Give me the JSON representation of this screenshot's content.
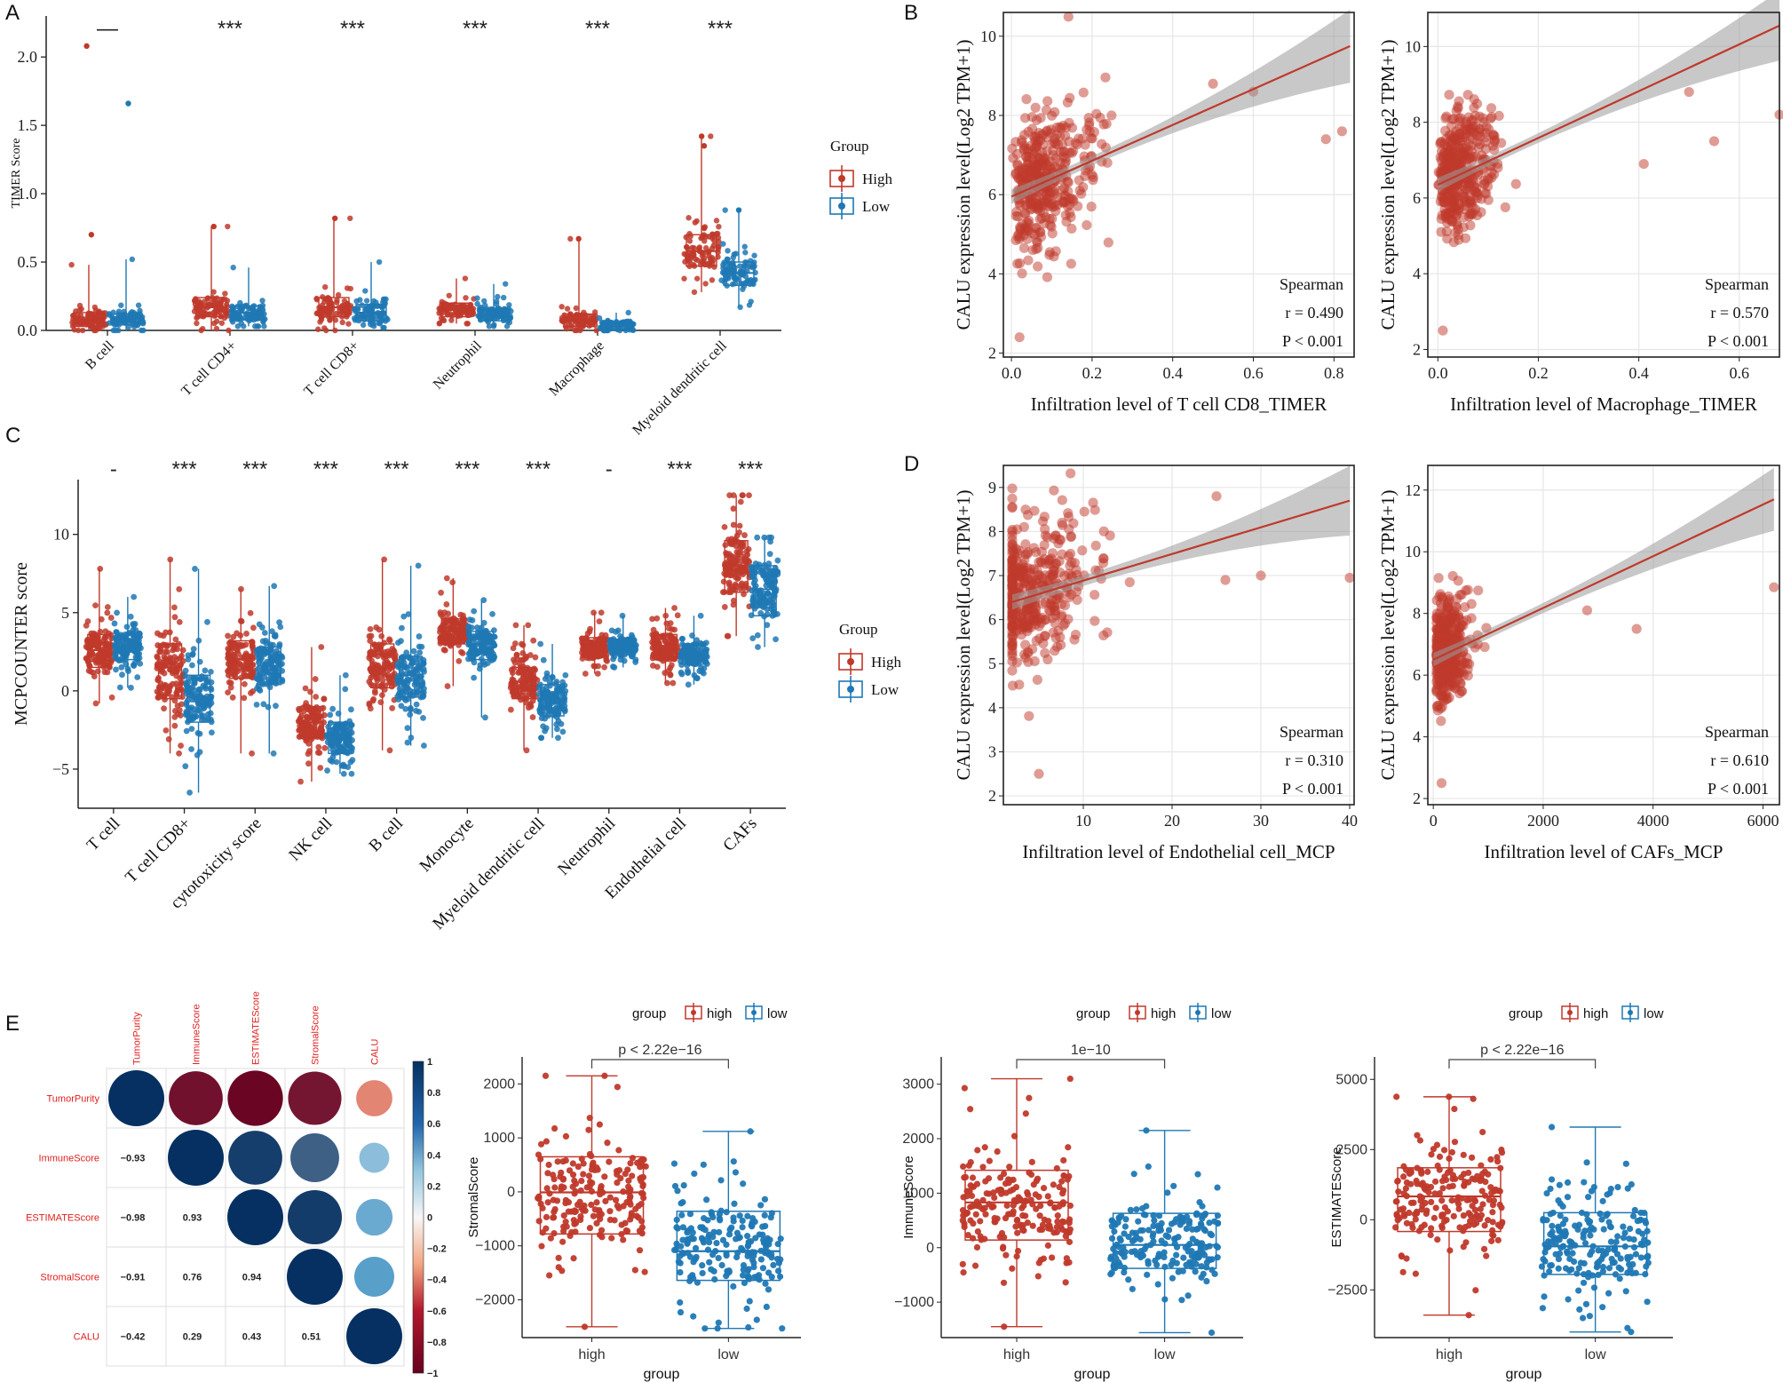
{
  "colors": {
    "high": "#c0392b",
    "low": "#1f78b4",
    "line": "#c0392b",
    "band": "#9a9a9a",
    "grid": "#e6e6e6",
    "axis": "#222222",
    "corrLabel": "#e02020"
  },
  "legend": {
    "title_a": "Group",
    "title_c": "Group",
    "high": "High",
    "low": "Low",
    "title_e": "group",
    "high_e": "high",
    "low_e": "low"
  },
  "panels": {
    "a": "A",
    "b": "B",
    "c": "C",
    "d": "D",
    "e": "E"
  },
  "chart_data": [
    {
      "id": "A",
      "type": "box+strip",
      "ylabel": "TIMER Score",
      "ylim": [
        0,
        2.3
      ],
      "yticks": [
        "0.0",
        "0.5",
        "1.0",
        "1.5",
        "2.0"
      ],
      "categories": [
        "B cell",
        "T cell CD4+",
        "T cell CD8+",
        "Neutrophil",
        "Macrophage",
        "Myeloid dendritic cell"
      ],
      "significance": [
        "—",
        "***",
        "***",
        "***",
        "***",
        "***"
      ],
      "series": [
        {
          "name": "High",
          "median": [
            0.07,
            0.17,
            0.17,
            0.15,
            0.07,
            0.58
          ],
          "q1": [
            0.03,
            0.1,
            0.1,
            0.1,
            0.03,
            0.47
          ],
          "q3": [
            0.13,
            0.24,
            0.24,
            0.2,
            0.12,
            0.7
          ],
          "min": [
            0,
            0,
            0,
            0.05,
            0,
            0.28
          ],
          "max": [
            0.48,
            0.76,
            0.82,
            0.38,
            0.67,
            1.42
          ],
          "outliers": [
            [
              2.08,
              0.7
            ],
            [
              0.76
            ],
            [
              0.82
            ],
            [],
            [
              0.67
            ],
            [
              1.42,
              1.35
            ]
          ]
        },
        {
          "name": "Low",
          "median": [
            0.08,
            0.13,
            0.13,
            0.12,
            0.03,
            0.42
          ],
          "q1": [
            0.04,
            0.08,
            0.07,
            0.07,
            0.01,
            0.33
          ],
          "q3": [
            0.12,
            0.18,
            0.19,
            0.16,
            0.06,
            0.5
          ],
          "min": [
            0,
            0.03,
            0.02,
            0.03,
            0,
            0.17
          ],
          "max": [
            0.52,
            0.46,
            0.5,
            0.34,
            0.13,
            0.88
          ],
          "outliers": [
            [
              1.66
            ],
            [],
            [],
            [],
            [],
            [
              0.88
            ]
          ]
        }
      ]
    },
    {
      "id": "B1",
      "type": "scatter",
      "xlabel": "Infiltration level of T cell CD8_TIMER",
      "ylabel": "CALU expression level(Log2 TPM+1)",
      "xlim": [
        -0.02,
        0.85
      ],
      "ylim": [
        1.9,
        10.6
      ],
      "xticks": [
        "0.0",
        "0.2",
        "0.4",
        "0.6",
        "0.8"
      ],
      "yticks": [
        "2",
        "4",
        "6",
        "8",
        "10"
      ],
      "stat": {
        "method": "Spearman",
        "r": "r = 0.490",
        "p": "P < 0.001"
      },
      "fit": {
        "x0": 0.0,
        "y0": 5.95,
        "x1": 0.84,
        "y1": 9.75
      }
    },
    {
      "id": "B2",
      "type": "scatter",
      "xlabel": "Infiltration level of Macrophage_TIMER",
      "ylabel": "CALU expression level(Log2 TPM+1)",
      "xlim": [
        -0.02,
        0.68
      ],
      "ylim": [
        1.8,
        10.9
      ],
      "xticks": [
        "0.0",
        "0.2",
        "0.4",
        "0.6"
      ],
      "yticks": [
        "2",
        "4",
        "6",
        "8",
        "10"
      ],
      "stat": {
        "method": "Spearman",
        "r": "r = 0.570",
        "p": "P < 0.001"
      },
      "fit": {
        "x0": 0.0,
        "y0": 6.35,
        "x1": 0.68,
        "y1": 10.55
      }
    },
    {
      "id": "C",
      "type": "box+strip",
      "ylabel": "MCPCOUNTER score",
      "ylim": [
        -7.5,
        13.5
      ],
      "yticks": [
        "−5",
        "0",
        "5",
        "10"
      ],
      "categories": [
        "T cell",
        "T cell CD8+",
        "cytotoxicity score",
        "NK cell",
        "B cell",
        "Monocyte",
        "Myeloid dendritic cell",
        "Neutrophil",
        "Endothelial cell",
        "CAFs"
      ],
      "significance": [
        "-",
        "***",
        "***",
        "***",
        "***",
        "***",
        "***",
        "-",
        "***",
        "***"
      ],
      "series": [
        {
          "name": "High",
          "median": [
            2.6,
            1.5,
            2.0,
            -2.0,
            1.5,
            3.8,
            0.6,
            2.8,
            2.8,
            8.0
          ],
          "q1": [
            1.5,
            -0.5,
            0.8,
            -3.0,
            0.2,
            3.0,
            -0.5,
            2.2,
            2.0,
            6.3
          ],
          "q3": [
            3.6,
            3.0,
            3.2,
            -1.0,
            3.0,
            4.6,
            1.5,
            3.4,
            3.6,
            9.6
          ],
          "min": [
            -0.8,
            -4.0,
            -4.0,
            -5.8,
            -3.8,
            0.3,
            -3.8,
            1.1,
            0.5,
            3.5
          ],
          "max": [
            7.8,
            8.4,
            6.5,
            2.8,
            8.4,
            7.2,
            4.2,
            5.0,
            5.3,
            12.5
          ]
        },
        {
          "name": "Low",
          "median": [
            2.8,
            -0.4,
            1.6,
            -3.0,
            1.0,
            3.0,
            -0.6,
            2.8,
            2.3,
            6.5
          ],
          "q1": [
            2.0,
            -2.0,
            0.4,
            -4.0,
            -0.4,
            2.0,
            -1.6,
            2.3,
            1.7,
            4.8
          ],
          "q3": [
            3.6,
            1.0,
            2.8,
            -2.0,
            2.2,
            3.8,
            0.4,
            3.3,
            3.0,
            8.0
          ],
          "min": [
            0.2,
            -6.5,
            -4.0,
            -5.3,
            -3.5,
            -1.7,
            -3.0,
            1.5,
            0.4,
            2.8
          ],
          "max": [
            6.0,
            7.8,
            6.7,
            1.0,
            8.0,
            5.8,
            3.0,
            4.8,
            4.8,
            9.8
          ]
        }
      ]
    },
    {
      "id": "D1",
      "type": "scatter",
      "xlabel": "Infiltration level of Endothelial cell_MCP",
      "ylabel": "CALU expression level(Log2 TPM+1)",
      "xlim": [
        1,
        40.5
      ],
      "ylim": [
        1.8,
        9.5
      ],
      "xticks": [
        "10",
        "20",
        "30",
        "40"
      ],
      "yticks": [
        "2",
        "3",
        "4",
        "5",
        "6",
        "7",
        "8",
        "9"
      ],
      "stat": {
        "method": "Spearman",
        "r": "r = 0.310",
        "p": "P < 0.001"
      },
      "fit": {
        "x0": 2,
        "y0": 6.4,
        "x1": 40,
        "y1": 8.7
      }
    },
    {
      "id": "D2",
      "type": "scatter",
      "xlabel": "Infiltration level of CAFs_MCP",
      "ylabel": "CALU expression level(Log2 TPM+1)",
      "xlim": [
        -100,
        6300
      ],
      "ylim": [
        1.8,
        12.8
      ],
      "xticks": [
        "0",
        "2000",
        "4000",
        "6000"
      ],
      "yticks": [
        "2",
        "4",
        "6",
        "8",
        "10",
        "12"
      ],
      "stat": {
        "method": "Spearman",
        "r": "r = 0.610",
        "p": "P < 0.001"
      },
      "fit": {
        "x0": 0,
        "y0": 6.5,
        "x1": 6200,
        "y1": 11.7
      }
    },
    {
      "id": "E1",
      "type": "corrplot",
      "variables": [
        "TumorPurity",
        "ImmuneScore",
        "ESTIMATEScore",
        "StromalScore",
        "CALU"
      ],
      "matrix": [
        [
          1,
          -0.93,
          -0.98,
          -0.91,
          -0.42
        ],
        [
          -0.93,
          1,
          0.93,
          0.76,
          0.29
        ],
        [
          -0.98,
          0.93,
          1,
          0.94,
          0.43
        ],
        [
          -0.91,
          0.76,
          0.94,
          1,
          0.51
        ],
        [
          -0.42,
          0.29,
          0.43,
          0.51,
          1
        ]
      ],
      "lower_labels": [
        [
          "−0.93"
        ],
        [
          "−0.98",
          "0.93"
        ],
        [
          "−0.91",
          "0.76",
          "0.94"
        ],
        [
          "−0.42",
          "0.29",
          "0.43",
          "0.51"
        ]
      ],
      "colorbar": [
        "1",
        "0.8",
        "0.6",
        "0.4",
        "0.2",
        "0",
        "−0.2",
        "−0.4",
        "−0.6",
        "−0.8",
        "−1"
      ]
    },
    {
      "id": "E2",
      "type": "box+strip",
      "xlabel": "group",
      "ylabel": "StromalScore",
      "categories": [
        "high",
        "low"
      ],
      "pvalue": "p < 2.22e−16",
      "ylim": [
        -2700,
        2500
      ],
      "yticks": [
        "2000",
        "1000",
        "0",
        "−1000",
        "−2000"
      ],
      "ytickVals": [
        2000,
        1000,
        0,
        -1000,
        -2000
      ],
      "series": [
        {
          "name": "high",
          "median": -10,
          "q1": -780,
          "q3": 650,
          "min": -2500,
          "max": 2150
        },
        {
          "name": "low",
          "median": -1100,
          "q1": -1640,
          "q3": -360,
          "min": -2530,
          "max": 1120
        }
      ]
    },
    {
      "id": "E3",
      "type": "box+strip",
      "xlabel": "group",
      "ylabel": "ImmuneScore",
      "categories": [
        "high",
        "low"
      ],
      "pvalue": "1e−10",
      "ylim": [
        -1650,
        3500
      ],
      "yticks": [
        "3000",
        "2000",
        "1000",
        "0",
        "−1000"
      ],
      "ytickVals": [
        3000,
        2000,
        1000,
        0,
        -1000
      ],
      "series": [
        {
          "name": "high",
          "median": 830,
          "q1": 140,
          "q3": 1420,
          "min": -1450,
          "max": 3100
        },
        {
          "name": "low",
          "median": 50,
          "q1": -380,
          "q3": 630,
          "min": -1560,
          "max": 2150
        }
      ]
    },
    {
      "id": "E4",
      "type": "box+strip",
      "xlabel": "group",
      "ylabel": "ESTIMATEScore",
      "categories": [
        "high",
        "low"
      ],
      "pvalue": "p < 2.22e−16",
      "ylim": [
        -4200,
        5800
      ],
      "yticks": [
        "5000",
        "2500",
        "0",
        "−2500"
      ],
      "ytickVals": [
        5000,
        2500,
        0,
        -2500
      ],
      "series": [
        {
          "name": "high",
          "median": 830,
          "q1": -420,
          "q3": 1850,
          "min": -3400,
          "max": 4380
        },
        {
          "name": "low",
          "median": -950,
          "q1": -1950,
          "q3": 250,
          "min": -4000,
          "max": 3300
        }
      ]
    }
  ]
}
